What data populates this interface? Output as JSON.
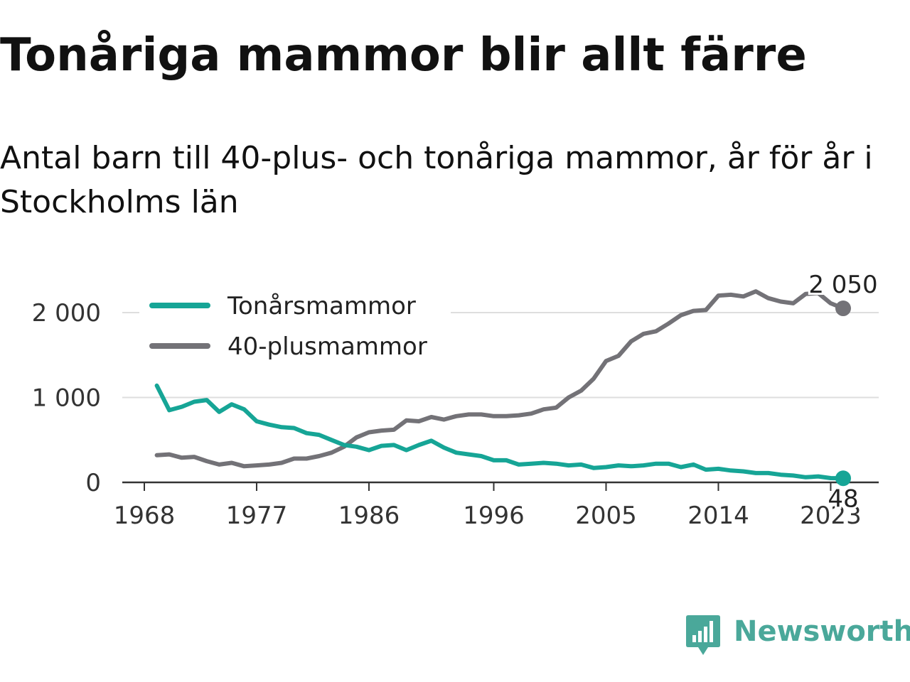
{
  "header": {
    "title": "Tonåriga mammor blir allt färre",
    "subtitle": "Antal barn till 40-plus- och tonåriga mammor, år för år i Stockholms län"
  },
  "brand": {
    "name": "Newsworthy",
    "icon": "bar-chart-speech-bubble-icon",
    "color": "#4aa89a"
  },
  "chart_data": {
    "type": "line",
    "x": [
      1969,
      1970,
      1971,
      1972,
      1973,
      1974,
      1975,
      1976,
      1977,
      1978,
      1979,
      1980,
      1981,
      1982,
      1983,
      1984,
      1985,
      1986,
      1987,
      1988,
      1989,
      1990,
      1991,
      1992,
      1993,
      1994,
      1995,
      1996,
      1997,
      1998,
      1999,
      2000,
      2001,
      2002,
      2003,
      2004,
      2005,
      2006,
      2007,
      2008,
      2009,
      2010,
      2011,
      2012,
      2013,
      2014,
      2015,
      2016,
      2017,
      2018,
      2019,
      2020,
      2021,
      2022,
      2023,
      2024
    ],
    "series": [
      {
        "name": "Tonårsmammor",
        "color": "#16a596",
        "values": [
          1140,
          850,
          890,
          950,
          970,
          830,
          920,
          860,
          720,
          680,
          650,
          640,
          580,
          560,
          500,
          440,
          420,
          380,
          430,
          440,
          380,
          440,
          490,
          410,
          350,
          330,
          310,
          260,
          260,
          210,
          220,
          230,
          220,
          200,
          210,
          170,
          180,
          200,
          190,
          200,
          220,
          220,
          180,
          210,
          150,
          160,
          140,
          130,
          110,
          110,
          90,
          80,
          60,
          70,
          50,
          48
        ]
      },
      {
        "name": "40-plusmammor",
        "color": "#737277",
        "values": [
          320,
          330,
          290,
          300,
          250,
          210,
          230,
          190,
          200,
          210,
          230,
          280,
          280,
          310,
          350,
          420,
          530,
          590,
          610,
          620,
          730,
          720,
          770,
          740,
          780,
          800,
          800,
          780,
          780,
          790,
          810,
          860,
          880,
          1000,
          1080,
          1220,
          1430,
          1490,
          1660,
          1750,
          1780,
          1870,
          1970,
          2020,
          2030,
          2200,
          2210,
          2190,
          2250,
          2170,
          2130,
          2110,
          2220,
          2230,
          2110,
          2050
        ]
      }
    ],
    "x_ticks": [
      1968,
      1977,
      1986,
      1996,
      2005,
      2014,
      2023
    ],
    "y_ticks": [
      0,
      1000,
      2000
    ],
    "y_tick_labels": [
      "0",
      "1 000",
      "2 000"
    ],
    "xlim": [
      1968,
      2024
    ],
    "ylim": [
      0,
      2250
    ],
    "grid": "horizontal",
    "legend_position": "top-left",
    "end_labels": [
      {
        "series": "40-plusmammor",
        "x": 2024,
        "y": 2050,
        "text": "2 050"
      },
      {
        "series": "Tonårsmammor",
        "x": 2024,
        "y": 48,
        "text": "48"
      }
    ]
  }
}
